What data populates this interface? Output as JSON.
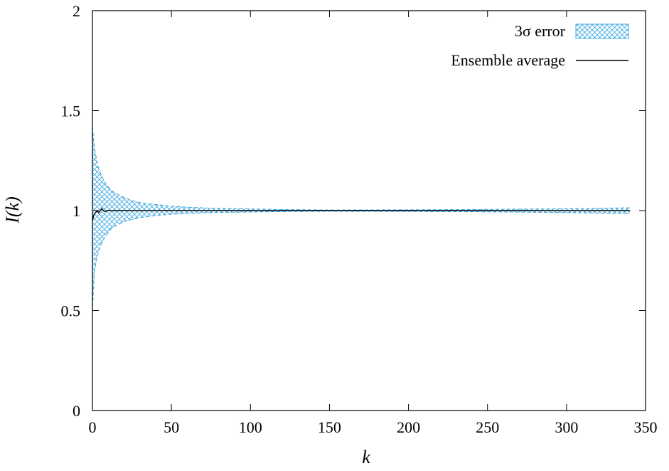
{
  "chart_data": {
    "type": "line",
    "title": "",
    "xlabel": "k",
    "ylabel": "I(k)",
    "xlim": [
      0,
      350
    ],
    "ylim": [
      0,
      2
    ],
    "x_ticks": [
      0,
      50,
      100,
      150,
      200,
      250,
      300,
      350
    ],
    "x_tick_labels": [
      "0",
      "50",
      "100",
      "150",
      "200",
      "250",
      "300",
      "350"
    ],
    "y_ticks": [
      0,
      0.5,
      1,
      1.5,
      2
    ],
    "y_tick_labels": [
      "0",
      "0.5",
      "1",
      "1.5",
      "2"
    ],
    "grid": false,
    "legend_position": "top-right",
    "legend": [
      {
        "label": "3σ error",
        "kind": "hatched-band",
        "color": "#3fa9e0"
      },
      {
        "label": "Ensemble average",
        "kind": "line",
        "color": "#000000"
      }
    ],
    "series": [
      {
        "name": "Ensemble average",
        "color": "#000000",
        "x": [
          0,
          1,
          2,
          3,
          4,
          5,
          6,
          7,
          8,
          9,
          10,
          12,
          15,
          20,
          25,
          30,
          40,
          50,
          75,
          100,
          150,
          200,
          250,
          300,
          340
        ],
        "y": [
          0.95,
          0.98,
          0.99,
          1.0,
          0.99,
          1.0,
          1.01,
          1.0,
          0.995,
          1.0,
          1.0,
          1.0,
          1.0,
          1.0,
          1.0,
          1.0,
          1.0,
          1.0,
          1.0,
          1.0,
          1.0,
          1.0,
          1.0,
          1.0,
          1.0
        ]
      },
      {
        "name": "3σ error",
        "color": "#3fa9e0",
        "x": [
          0,
          1,
          2,
          3,
          4,
          5,
          6,
          8,
          10,
          12,
          15,
          20,
          25,
          30,
          40,
          50,
          60,
          75,
          100,
          125,
          150,
          200,
          250,
          300,
          340
        ],
        "upper": [
          1.42,
          1.33,
          1.28,
          1.24,
          1.21,
          1.19,
          1.17,
          1.14,
          1.12,
          1.1,
          1.085,
          1.065,
          1.05,
          1.04,
          1.03,
          1.022,
          1.017,
          1.012,
          1.008,
          1.005,
          1.003,
          1.004,
          1.006,
          1.009,
          1.014
        ],
        "lower": [
          0.49,
          0.67,
          0.73,
          0.77,
          0.8,
          0.82,
          0.84,
          0.87,
          0.89,
          0.91,
          0.925,
          0.945,
          0.955,
          0.965,
          0.975,
          0.982,
          0.986,
          0.99,
          0.993,
          0.996,
          0.997,
          0.996,
          0.994,
          0.99,
          0.985
        ]
      }
    ]
  }
}
